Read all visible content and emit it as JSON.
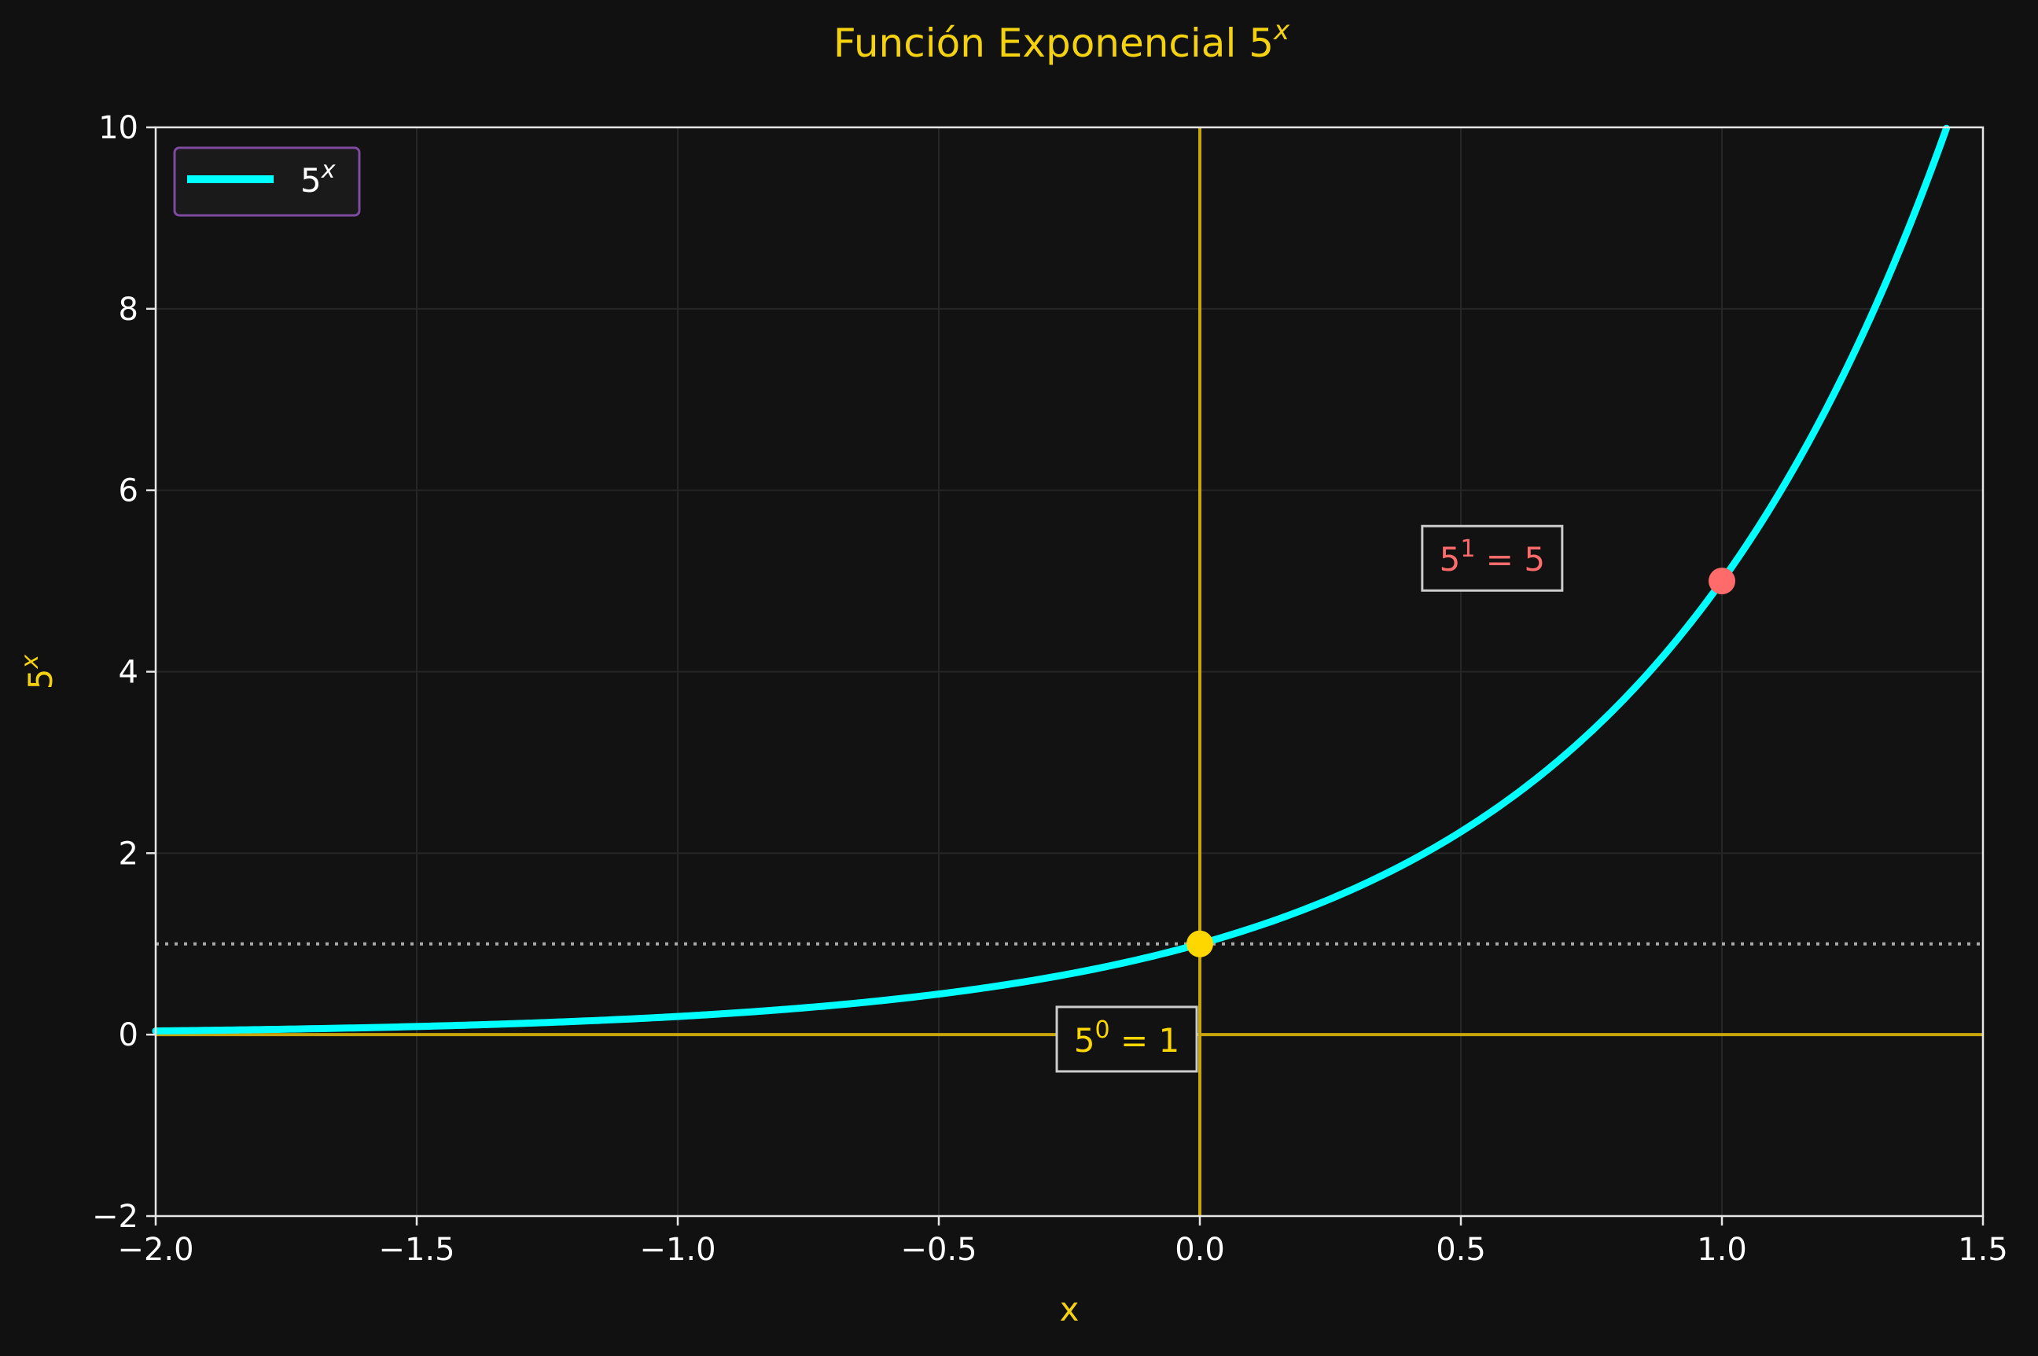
{
  "colors": {
    "background": "#111111",
    "axes_face": "#121212",
    "spine": "#e6e6e6",
    "grid": "#262626",
    "title": "#f5d20f",
    "label": "#f5d20f",
    "tick_text": "#ffffff",
    "curve": "#00ffff",
    "axis_lines": "#c8a50d",
    "reference_line": "#aaaaaa",
    "point_origin": "#ffd700",
    "point_one": "#ff6b6b",
    "legend_border": "#7e4aa0",
    "annotation_box": "#cccccc"
  },
  "chart_data": {
    "type": "line",
    "title": "Función Exponencial 5",
    "title_superscript": "x",
    "xlabel": "x",
    "ylabel": "5",
    "ylabel_superscript": "x",
    "xlim": [
      -2.0,
      1.5
    ],
    "ylim": [
      -2,
      10
    ],
    "xticks": [
      -2.0,
      -1.5,
      -1.0,
      -0.5,
      0.0,
      0.5,
      1.0,
      1.5
    ],
    "xtick_labels": [
      "−2.0",
      "−1.5",
      "−1.0",
      "−0.5",
      "0.0",
      "0.5",
      "1.0",
      "1.5"
    ],
    "yticks": [
      -2,
      0,
      2,
      4,
      6,
      8,
      10
    ],
    "ytick_labels": [
      "−2",
      "0",
      "2",
      "4",
      "6",
      "8",
      "10"
    ],
    "grid": true,
    "legend_position": "top-left",
    "series": [
      {
        "name": "5",
        "name_superscript": "x",
        "color": "#00ffff",
        "function": "5^x",
        "x": [
          -2.0,
          -1.75,
          -1.5,
          -1.25,
          -1.0,
          -0.75,
          -0.5,
          -0.25,
          0.0,
          0.25,
          0.5,
          0.75,
          1.0,
          1.25,
          1.43
        ],
        "y": [
          0.04,
          0.06,
          0.089,
          0.134,
          0.2,
          0.299,
          0.447,
          0.669,
          1.0,
          1.495,
          2.236,
          3.344,
          5.0,
          7.477,
          10.0
        ]
      }
    ],
    "reference_lines": [
      {
        "orientation": "horizontal",
        "value": 0,
        "style": "solid",
        "color": "#c8a50d"
      },
      {
        "orientation": "vertical",
        "value": 0,
        "style": "solid",
        "color": "#c8a50d"
      },
      {
        "orientation": "horizontal",
        "value": 1,
        "style": "dotted",
        "color": "#aaaaaa"
      }
    ],
    "points": [
      {
        "x": 0,
        "y": 1,
        "color": "#ffd700"
      },
      {
        "x": 1,
        "y": 5,
        "color": "#ff6b6b"
      }
    ],
    "annotations": [
      {
        "base": "5",
        "exponent": "0",
        "rest": " = 1",
        "color": "#ffd700",
        "anchor_x": -0.14,
        "anchor_y": -0.05
      },
      {
        "base": "5",
        "exponent": "1",
        "rest": " = 5",
        "color": "#ff6b6b",
        "anchor_x": 0.56,
        "anchor_y": 5.25
      }
    ]
  }
}
